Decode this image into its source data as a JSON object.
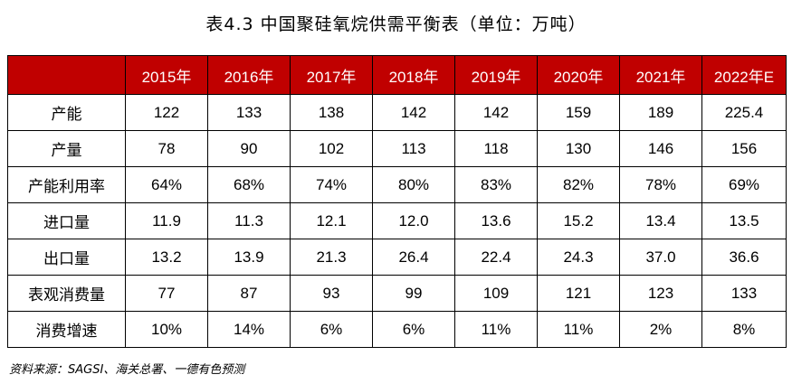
{
  "title": "表4.3 中国聚硅氧烷供需平衡表（单位：万吨）",
  "table": {
    "headers": [
      "",
      "2015年",
      "2016年",
      "2017年",
      "2018年",
      "2019年",
      "2020年",
      "2021年",
      "2022年E"
    ],
    "rows": [
      {
        "label": "产能",
        "values": [
          "122",
          "133",
          "138",
          "142",
          "142",
          "159",
          "189",
          "225.4"
        ]
      },
      {
        "label": "产量",
        "values": [
          "78",
          "90",
          "102",
          "113",
          "118",
          "130",
          "146",
          "156"
        ]
      },
      {
        "label": "产能利用率",
        "values": [
          "64%",
          "68%",
          "74%",
          "80%",
          "83%",
          "82%",
          "78%",
          "69%"
        ]
      },
      {
        "label": "进口量",
        "values": [
          "11.9",
          "11.3",
          "12.1",
          "12.0",
          "13.6",
          "15.2",
          "13.4",
          "13.5"
        ]
      },
      {
        "label": "出口量",
        "values": [
          "13.2",
          "13.9",
          "21.3",
          "26.4",
          "22.4",
          "24.3",
          "37.0",
          "36.6"
        ]
      },
      {
        "label": "表观消费量",
        "values": [
          "77",
          "87",
          "93",
          "99",
          "109",
          "121",
          "123",
          "133"
        ]
      },
      {
        "label": "消费增速",
        "values": [
          "10%",
          "14%",
          "6%",
          "6%",
          "11%",
          "11%",
          "2%",
          "8%"
        ]
      }
    ]
  },
  "source": "资料来源：SAGSI、海关总署、一德有色预测",
  "colors": {
    "header_bg": "#c00000",
    "header_text": "#ffffff"
  }
}
